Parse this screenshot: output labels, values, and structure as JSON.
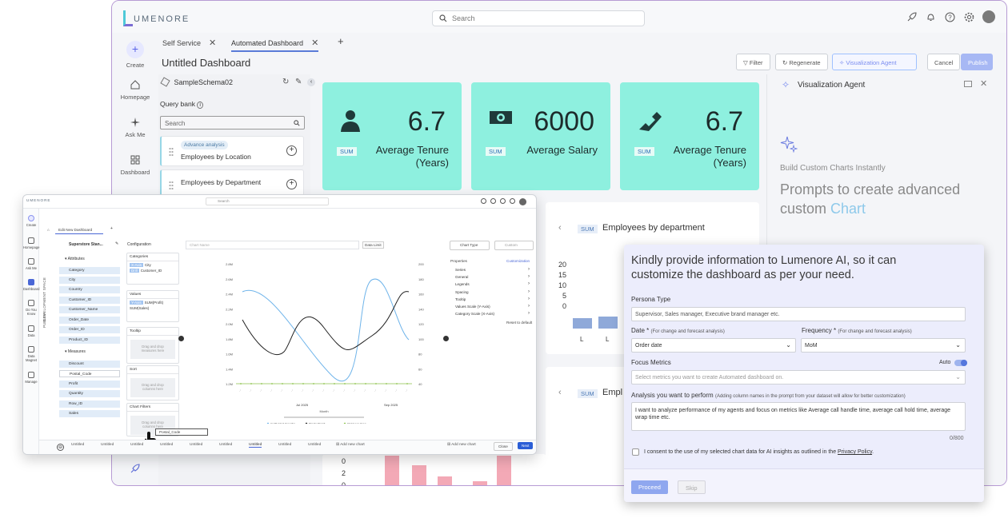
{
  "app": {
    "logo_text": "UMENORE",
    "search_placeholder": "Search"
  },
  "nav": {
    "create": "Create",
    "homepage": "Homepage",
    "ask_me": "Ask Me",
    "dashboard": "Dashboard"
  },
  "tabs": [
    {
      "label": "Self Service"
    },
    {
      "label": "Automated Dashboard"
    }
  ],
  "dashboard": {
    "title": "Untitled Dashboard",
    "buttons": {
      "filter": "Filter",
      "regenerate": "Regenerate",
      "viz_agent": "Visualization Agent",
      "cancel": "Cancel",
      "publish": "Publish"
    }
  },
  "query_panel": {
    "schema": "SampleSchema02",
    "query_bank": "Query bank",
    "search_placeholder": "Search",
    "items": [
      {
        "tag": "Advance analysis",
        "label": "Employees by Location"
      },
      {
        "label": "Employees by Department"
      }
    ]
  },
  "kpis": [
    {
      "value": "6.7",
      "agg": "SUM",
      "label_line1": "Average Tenure",
      "label_line2": "(Years)",
      "icon": "person-icon"
    },
    {
      "value": "6000",
      "agg": "SUM",
      "label_line1": "Average Salary",
      "label_line2": "",
      "icon": "cash-icon"
    },
    {
      "value": "6.7",
      "agg": "SUM",
      "label_line1": "Average Tenure",
      "label_line2": "(Years)",
      "icon": "handshake-icon"
    }
  ],
  "chart_cards": [
    {
      "agg": "SUM",
      "title": "Employees by department",
      "y_ticks": [
        "20",
        "15",
        "10",
        "5",
        "0"
      ],
      "x_ticks": [
        "L",
        "L"
      ]
    },
    {
      "agg": "SUM",
      "title": "Empl",
      "y_ticks": [
        "0",
        "2",
        "0"
      ]
    }
  ],
  "viz_agent": {
    "title": "Visualization Agent",
    "tagline": "Build Custom Charts Instantly",
    "headline_1": "Prompts to create advanced",
    "headline_2_plain": "custom ",
    "headline_2_accent": "Chart"
  },
  "persona_form": {
    "title": "Kindly provide information to Lumenore AI, so it can customize the dashboard as per your need.",
    "persona_label": "Persona Type",
    "persona_placeholder": "Supervisor, Sales manager, Executive brand manager etc.",
    "date_label": "Date *",
    "date_hint": "(For change and forecast analysis)",
    "date_value": "Order date",
    "freq_label": "Frequency *",
    "freq_hint": "(For change and forecast analysis)",
    "freq_value": "MoM",
    "focus_label": "Focus Metrics",
    "auto_label": "Auto",
    "focus_placeholder": "Select metrics you want to create Automated dashboard on.",
    "analysis_label": "Analysis you want to perform",
    "analysis_hint": "(Adding column names in the prompt from your dataset will allow for better customization)",
    "analysis_text": "I want to analyze performance of my agents and focus on metrics like Average call handle time, average call hold time, average wrap time etc.",
    "counter": "0/800",
    "consent_text": "I consent to the use of my selected chart data for AI insights as outlined in the",
    "consent_link": "Privacy Policy",
    "consent_end": ".",
    "proceed": "Proceed",
    "skip": "Skip"
  },
  "editor": {
    "logo_text": "UMENORE",
    "search_placeholder": "Search",
    "tab": "Edit New Dashboard",
    "nav": [
      "Create",
      "Homepage",
      "Ask Me",
      "Dashboard",
      "Do You Know",
      "Data",
      "Data Magnet",
      "Manage"
    ],
    "side_vertical_1": "DEVELOPMENT SPACE",
    "side_vertical_2": "PUBLISH",
    "dataset": "Superstore Stan...",
    "attributes_label": "Attributes",
    "attributes": [
      "Category",
      "City",
      "Country",
      "Customer_ID",
      "Customer_Name",
      "Order_Date",
      "Order_ID",
      "Product_ID"
    ],
    "measures_label": "Measures",
    "measures": [
      "Discount",
      "Postal_Code",
      "Profit",
      "Quantity",
      "Row_ID",
      "Sales"
    ],
    "config_label": "Configuration",
    "categories_label": "Categories",
    "categories": [
      {
        "badge": "X-Axis",
        "name": "City"
      },
      {
        "badge": "Drill",
        "name": "Customer_ID"
      }
    ],
    "values_label": "Values",
    "values": [
      {
        "badge": "Y-Axis",
        "name": "SUM(Profit)"
      },
      {
        "badge": "",
        "name": "SUM(Sales)"
      }
    ],
    "tooltip_label": "Tooltip",
    "sort_label": "Sort",
    "filters_label": "Chart Filters",
    "drop_hint_1": "Drag and drop",
    "drop_hint_2": "measures here",
    "drop_hint_3": "columns here",
    "drag_chip": "Postal_Code",
    "chart_name_placeholder": "Chart Name",
    "data_limit": "Data Limit",
    "chart_type": "Chart Type",
    "custom": "Custom",
    "properties_label": "Properties",
    "customization_label": "Customization",
    "properties": [
      "Series",
      "General",
      "Legends",
      "Spacing",
      "Tooltip",
      "Values Scale (Y-Axis)",
      "Category Scale (X-Axis)"
    ],
    "reset": "Reset to default",
    "x_group_labels": [
      "Jul 2025",
      "Sep 2025"
    ],
    "x_axis_label": "Month",
    "legend": [
      "Cultivated Area/ha",
      "Production/t",
      "Yield per Area"
    ],
    "left_y_ticks": [
      "2.8M",
      "2.6M",
      "2.4M",
      "2.2M",
      "2.0M",
      "1.8M",
      "1.6M",
      "1.4M",
      "1.2M"
    ],
    "right_y_ticks": [
      "200",
      "180",
      "160",
      "140",
      "120",
      "100",
      "80",
      "60",
      "40"
    ],
    "bottom_tabs": [
      "Untitled",
      "Untitled",
      "Untitled",
      "Untitled",
      "Untitled",
      "Untitled",
      "Untitled",
      "Untitled",
      "Untitled"
    ],
    "add_new_chart": "Add new chart",
    "close": "Close",
    "next": "Next"
  }
}
